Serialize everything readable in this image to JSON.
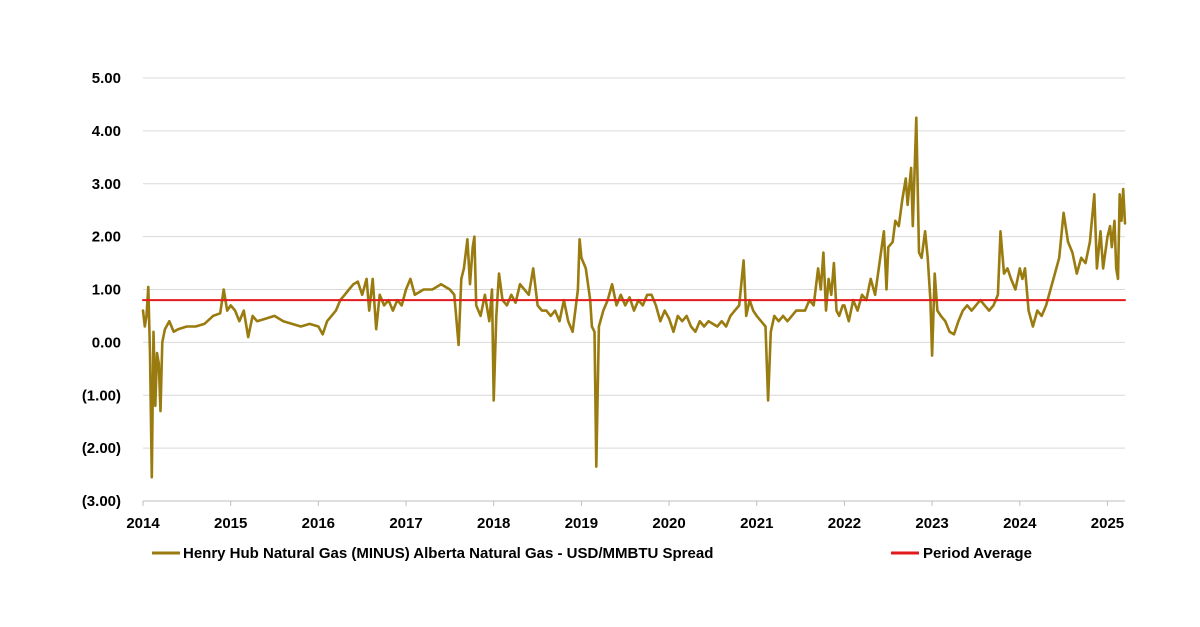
{
  "chart_data": {
    "type": "line",
    "title": "",
    "xlabel": "",
    "ylabel": "",
    "xlim": [
      2014.0,
      2025.2
    ],
    "ylim": [
      -3.0,
      5.0
    ],
    "y_ticks": [
      -3,
      -2,
      -1,
      0,
      1,
      2,
      3,
      4,
      5
    ],
    "y_tick_labels": [
      "(3.00)",
      "(2.00)",
      "(1.00)",
      "0.00",
      "1.00",
      "2.00",
      "3.00",
      "4.00",
      "5.00"
    ],
    "x_ticks": [
      2014,
      2015,
      2016,
      2017,
      2018,
      2019,
      2020,
      2021,
      2022,
      2023,
      2024,
      2025
    ],
    "x_tick_labels": [
      "2014",
      "2015",
      "2016",
      "2017",
      "2018",
      "2019",
      "2020",
      "2021",
      "2022",
      "2023",
      "2024",
      "2025"
    ],
    "grid": "horizontal",
    "legend_position": "bottom",
    "series": [
      {
        "name": "Henry Hub Natural Gas (MINUS) Alberta Natural Gas - USD/MMBTU Spread",
        "color": "#9a7b10",
        "points": [
          [
            2014.0,
            0.6
          ],
          [
            2014.02,
            0.3
          ],
          [
            2014.04,
            0.5
          ],
          [
            2014.06,
            1.05
          ],
          [
            2014.08,
            -0.2
          ],
          [
            2014.1,
            -2.55
          ],
          [
            2014.12,
            0.2
          ],
          [
            2014.14,
            -1.2
          ],
          [
            2014.16,
            -0.2
          ],
          [
            2014.18,
            -0.4
          ],
          [
            2014.2,
            -1.3
          ],
          [
            2014.22,
            0.0
          ],
          [
            2014.25,
            0.25
          ],
          [
            2014.3,
            0.4
          ],
          [
            2014.35,
            0.2
          ],
          [
            2014.4,
            0.25
          ],
          [
            2014.5,
            0.3
          ],
          [
            2014.6,
            0.3
          ],
          [
            2014.7,
            0.35
          ],
          [
            2014.8,
            0.5
          ],
          [
            2014.88,
            0.55
          ],
          [
            2014.92,
            1.0
          ],
          [
            2014.96,
            0.6
          ],
          [
            2015.0,
            0.7
          ],
          [
            2015.05,
            0.6
          ],
          [
            2015.1,
            0.4
          ],
          [
            2015.15,
            0.6
          ],
          [
            2015.2,
            0.1
          ],
          [
            2015.25,
            0.5
          ],
          [
            2015.3,
            0.4
          ],
          [
            2015.4,
            0.45
          ],
          [
            2015.5,
            0.5
          ],
          [
            2015.6,
            0.4
          ],
          [
            2015.7,
            0.35
          ],
          [
            2015.8,
            0.3
          ],
          [
            2015.9,
            0.35
          ],
          [
            2016.0,
            0.3
          ],
          [
            2016.05,
            0.15
          ],
          [
            2016.1,
            0.4
          ],
          [
            2016.15,
            0.5
          ],
          [
            2016.2,
            0.6
          ],
          [
            2016.25,
            0.8
          ],
          [
            2016.3,
            0.9
          ],
          [
            2016.35,
            1.0
          ],
          [
            2016.4,
            1.1
          ],
          [
            2016.45,
            1.15
          ],
          [
            2016.5,
            0.9
          ],
          [
            2016.55,
            1.2
          ],
          [
            2016.58,
            0.6
          ],
          [
            2016.62,
            1.2
          ],
          [
            2016.66,
            0.25
          ],
          [
            2016.7,
            0.9
          ],
          [
            2016.75,
            0.7
          ],
          [
            2016.8,
            0.8
          ],
          [
            2016.85,
            0.6
          ],
          [
            2016.9,
            0.8
          ],
          [
            2016.95,
            0.7
          ],
          [
            2017.0,
            1.0
          ],
          [
            2017.05,
            1.2
          ],
          [
            2017.1,
            0.9
          ],
          [
            2017.2,
            1.0
          ],
          [
            2017.3,
            1.0
          ],
          [
            2017.4,
            1.1
          ],
          [
            2017.5,
            1.0
          ],
          [
            2017.55,
            0.9
          ],
          [
            2017.6,
            -0.05
          ],
          [
            2017.63,
            1.2
          ],
          [
            2017.66,
            1.4
          ],
          [
            2017.7,
            1.95
          ],
          [
            2017.73,
            1.1
          ],
          [
            2017.76,
            1.8
          ],
          [
            2017.78,
            2.0
          ],
          [
            2017.8,
            0.7
          ],
          [
            2017.85,
            0.5
          ],
          [
            2017.9,
            0.9
          ],
          [
            2017.95,
            0.4
          ],
          [
            2017.98,
            1.0
          ],
          [
            2018.0,
            -1.1
          ],
          [
            2018.03,
            0.5
          ],
          [
            2018.06,
            1.3
          ],
          [
            2018.1,
            0.8
          ],
          [
            2018.15,
            0.7
          ],
          [
            2018.2,
            0.9
          ],
          [
            2018.25,
            0.75
          ],
          [
            2018.3,
            1.1
          ],
          [
            2018.35,
            1.0
          ],
          [
            2018.4,
            0.9
          ],
          [
            2018.45,
            1.4
          ],
          [
            2018.5,
            0.7
          ],
          [
            2018.55,
            0.6
          ],
          [
            2018.6,
            0.6
          ],
          [
            2018.65,
            0.5
          ],
          [
            2018.7,
            0.6
          ],
          [
            2018.75,
            0.4
          ],
          [
            2018.8,
            0.8
          ],
          [
            2018.85,
            0.4
          ],
          [
            2018.9,
            0.2
          ],
          [
            2018.93,
            0.6
          ],
          [
            2018.96,
            1.0
          ],
          [
            2018.98,
            1.95
          ],
          [
            2019.0,
            1.6
          ],
          [
            2019.05,
            1.4
          ],
          [
            2019.1,
            0.8
          ],
          [
            2019.12,
            0.3
          ],
          [
            2019.15,
            0.2
          ],
          [
            2019.17,
            -2.35
          ],
          [
            2019.2,
            0.3
          ],
          [
            2019.25,
            0.6
          ],
          [
            2019.3,
            0.8
          ],
          [
            2019.35,
            1.1
          ],
          [
            2019.4,
            0.7
          ],
          [
            2019.45,
            0.9
          ],
          [
            2019.5,
            0.7
          ],
          [
            2019.55,
            0.85
          ],
          [
            2019.6,
            0.6
          ],
          [
            2019.65,
            0.8
          ],
          [
            2019.7,
            0.7
          ],
          [
            2019.75,
            0.9
          ],
          [
            2019.8,
            0.9
          ],
          [
            2019.85,
            0.7
          ],
          [
            2019.9,
            0.4
          ],
          [
            2019.95,
            0.6
          ],
          [
            2020.0,
            0.45
          ],
          [
            2020.05,
            0.2
          ],
          [
            2020.1,
            0.5
          ],
          [
            2020.15,
            0.4
          ],
          [
            2020.2,
            0.5
          ],
          [
            2020.25,
            0.3
          ],
          [
            2020.3,
            0.2
          ],
          [
            2020.35,
            0.4
          ],
          [
            2020.4,
            0.3
          ],
          [
            2020.45,
            0.4
          ],
          [
            2020.5,
            0.35
          ],
          [
            2020.55,
            0.3
          ],
          [
            2020.6,
            0.4
          ],
          [
            2020.65,
            0.3
          ],
          [
            2020.7,
            0.5
          ],
          [
            2020.75,
            0.6
          ],
          [
            2020.8,
            0.7
          ],
          [
            2020.85,
            1.55
          ],
          [
            2020.88,
            0.5
          ],
          [
            2020.92,
            0.8
          ],
          [
            2020.96,
            0.6
          ],
          [
            2021.0,
            0.5
          ],
          [
            2021.05,
            0.4
          ],
          [
            2021.1,
            0.3
          ],
          [
            2021.13,
            -1.1
          ],
          [
            2021.16,
            0.2
          ],
          [
            2021.2,
            0.5
          ],
          [
            2021.25,
            0.4
          ],
          [
            2021.3,
            0.5
          ],
          [
            2021.35,
            0.4
          ],
          [
            2021.4,
            0.5
          ],
          [
            2021.45,
            0.6
          ],
          [
            2021.5,
            0.6
          ],
          [
            2021.55,
            0.6
          ],
          [
            2021.6,
            0.8
          ],
          [
            2021.65,
            0.7
          ],
          [
            2021.7,
            1.4
          ],
          [
            2021.73,
            1.0
          ],
          [
            2021.76,
            1.7
          ],
          [
            2021.79,
            0.6
          ],
          [
            2021.82,
            1.2
          ],
          [
            2021.85,
            0.9
          ],
          [
            2021.88,
            1.5
          ],
          [
            2021.91,
            0.6
          ],
          [
            2021.94,
            0.5
          ],
          [
            2021.98,
            0.7
          ],
          [
            2022.0,
            0.7
          ],
          [
            2022.05,
            0.4
          ],
          [
            2022.1,
            0.8
          ],
          [
            2022.15,
            0.6
          ],
          [
            2022.2,
            0.9
          ],
          [
            2022.25,
            0.8
          ],
          [
            2022.3,
            1.2
          ],
          [
            2022.35,
            0.9
          ],
          [
            2022.4,
            1.5
          ],
          [
            2022.45,
            2.1
          ],
          [
            2022.48,
            1.0
          ],
          [
            2022.5,
            1.8
          ],
          [
            2022.55,
            1.9
          ],
          [
            2022.58,
            2.3
          ],
          [
            2022.62,
            2.2
          ],
          [
            2022.66,
            2.7
          ],
          [
            2022.7,
            3.1
          ],
          [
            2022.72,
            2.6
          ],
          [
            2022.76,
            3.3
          ],
          [
            2022.78,
            2.2
          ],
          [
            2022.82,
            4.25
          ],
          [
            2022.85,
            1.7
          ],
          [
            2022.88,
            1.6
          ],
          [
            2022.92,
            2.1
          ],
          [
            2022.95,
            1.6
          ],
          [
            2022.98,
            0.8
          ],
          [
            2023.0,
            -0.25
          ],
          [
            2023.03,
            1.3
          ],
          [
            2023.06,
            0.6
          ],
          [
            2023.1,
            0.5
          ],
          [
            2023.15,
            0.4
          ],
          [
            2023.2,
            0.2
          ],
          [
            2023.25,
            0.15
          ],
          [
            2023.3,
            0.4
          ],
          [
            2023.35,
            0.6
          ],
          [
            2023.4,
            0.7
          ],
          [
            2023.45,
            0.6
          ],
          [
            2023.5,
            0.7
          ],
          [
            2023.55,
            0.8
          ],
          [
            2023.6,
            0.7
          ],
          [
            2023.65,
            0.6
          ],
          [
            2023.7,
            0.7
          ],
          [
            2023.75,
            0.9
          ],
          [
            2023.78,
            2.1
          ],
          [
            2023.82,
            1.3
          ],
          [
            2023.86,
            1.4
          ],
          [
            2023.9,
            1.2
          ],
          [
            2023.95,
            1.0
          ],
          [
            2024.0,
            1.4
          ],
          [
            2024.03,
            1.2
          ],
          [
            2024.06,
            1.4
          ],
          [
            2024.1,
            0.6
          ],
          [
            2024.15,
            0.3
          ],
          [
            2024.2,
            0.6
          ],
          [
            2024.25,
            0.5
          ],
          [
            2024.3,
            0.7
          ],
          [
            2024.35,
            1.0
          ],
          [
            2024.4,
            1.3
          ],
          [
            2024.45,
            1.6
          ],
          [
            2024.5,
            2.45
          ],
          [
            2024.55,
            1.9
          ],
          [
            2024.6,
            1.7
          ],
          [
            2024.65,
            1.3
          ],
          [
            2024.7,
            1.6
          ],
          [
            2024.75,
            1.5
          ],
          [
            2024.8,
            1.9
          ],
          [
            2024.85,
            2.8
          ],
          [
            2024.88,
            1.4
          ],
          [
            2024.92,
            2.1
          ],
          [
            2024.95,
            1.4
          ],
          [
            2025.0,
            2.0
          ],
          [
            2025.03,
            2.2
          ],
          [
            2025.05,
            1.8
          ],
          [
            2025.08,
            2.3
          ],
          [
            2025.1,
            1.4
          ],
          [
            2025.12,
            1.2
          ],
          [
            2025.14,
            2.8
          ],
          [
            2025.16,
            2.3
          ],
          [
            2025.18,
            2.9
          ],
          [
            2025.2,
            2.25
          ]
        ]
      },
      {
        "name": "Period Average",
        "color": "#e31a1c",
        "points": [
          [
            2014.0,
            0.8
          ],
          [
            2025.2,
            0.8
          ]
        ]
      }
    ]
  }
}
